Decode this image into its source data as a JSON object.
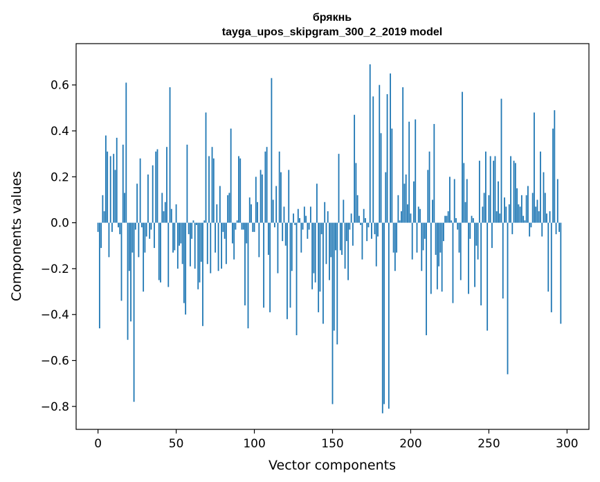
{
  "chart_data": {
    "type": "bar",
    "title": "брякнь",
    "subtitle": "tayga_upos_skipgram_300_2_2019 model",
    "xlabel": "Vector components",
    "ylabel": "Components values",
    "xlim": [
      -14,
      314
    ],
    "ylim": [
      -0.9,
      0.78
    ],
    "xticks": [
      0,
      50,
      100,
      150,
      200,
      250,
      300
    ],
    "yticks": [
      -0.8,
      -0.6,
      -0.4,
      -0.2,
      0.0,
      0.2,
      0.4,
      0.6
    ],
    "ytick_labels": [
      "−0.8",
      "−0.6",
      "−0.4",
      "−0.2",
      "0.0",
      "0.2",
      "0.4",
      "0.6"
    ],
    "bar_color": "#1f77b4",
    "grid": false,
    "values": [
      -0.04,
      -0.46,
      -0.11,
      0.12,
      0.05,
      0.38,
      0.31,
      -0.15,
      0.29,
      -0.04,
      0.3,
      0.23,
      0.37,
      -0.02,
      -0.05,
      -0.34,
      0.34,
      0.13,
      0.61,
      -0.51,
      -0.21,
      -0.43,
      -0.13,
      -0.78,
      -0.03,
      0.17,
      -0.15,
      0.28,
      -0.02,
      -0.3,
      -0.13,
      -0.06,
      0.21,
      -0.07,
      -0.03,
      0.25,
      -0.11,
      0.31,
      0.32,
      -0.25,
      -0.26,
      0.13,
      0.05,
      0.09,
      0.33,
      -0.28,
      0.59,
      0.06,
      -0.13,
      -0.12,
      0.08,
      -0.2,
      -0.1,
      -0.09,
      -0.18,
      -0.35,
      -0.4,
      0.34,
      -0.05,
      -0.19,
      -0.07,
      0.01,
      -0.2,
      -0.01,
      -0.29,
      -0.26,
      -0.17,
      -0.45,
      0.01,
      0.48,
      -0.18,
      0.29,
      -0.22,
      0.33,
      0.28,
      -0.13,
      0.08,
      -0.21,
      0.16,
      -0.2,
      -0.04,
      -0.07,
      -0.18,
      0.12,
      0.13,
      0.41,
      -0.09,
      -0.16,
      -0.03,
      0.01,
      0.29,
      0.28,
      -0.03,
      -0.03,
      -0.36,
      -0.09,
      -0.46,
      0.11,
      0.08,
      -0.04,
      -0.04,
      0.2,
      0.09,
      -0.15,
      0.23,
      0.21,
      -0.37,
      0.31,
      0.33,
      -0.14,
      -0.39,
      0.63,
      0.1,
      -0.02,
      0.16,
      -0.22,
      0.31,
      0.22,
      -0.08,
      0.07,
      -0.1,
      -0.42,
      0.23,
      -0.37,
      -0.21,
      0.04,
      -0.01,
      -0.49,
      0.06,
      0.02,
      -0.13,
      -0.03,
      0.07,
      0.03,
      -0.07,
      -0.03,
      0.07,
      -0.29,
      -0.22,
      -0.26,
      0.17,
      -0.39,
      -0.3,
      -0.05,
      -0.44,
      0.09,
      -0.18,
      0.05,
      -0.25,
      -0.15,
      -0.79,
      -0.47,
      -0.12,
      -0.53,
      0.3,
      -0.12,
      -0.14,
      0.1,
      -0.2,
      -0.08,
      -0.25,
      -0.03,
      0.04,
      -0.1,
      0.47,
      0.26,
      0.12,
      0.03,
      -0.01,
      -0.16,
      0.06,
      0.02,
      -0.08,
      -0.02,
      0.69,
      -0.07,
      0.55,
      -0.05,
      -0.19,
      -0.06,
      0.6,
      0.39,
      -0.83,
      -0.79,
      0.22,
      0.56,
      -0.81,
      0.65,
      0.41,
      -0.13,
      -0.21,
      -0.13,
      0.12,
      0.01,
      0.05,
      0.59,
      0.17,
      0.21,
      0.08,
      0.44,
      0.04,
      -0.16,
      0.18,
      0.45,
      -0.13,
      0.07,
      0.06,
      -0.21,
      -0.12,
      -0.07,
      -0.49,
      0.23,
      0.31,
      -0.31,
      0.1,
      0.43,
      -0.14,
      -0.29,
      -0.19,
      -0.13,
      -0.3,
      -0.08,
      0.03,
      0.03,
      0.05,
      0.2,
      0.01,
      -0.35,
      0.19,
      0.02,
      -0.03,
      -0.13,
      -0.25,
      0.57,
      0.26,
      0.09,
      0.19,
      -0.31,
      -0.07,
      0.03,
      0.02,
      -0.28,
      -0.1,
      -0.16,
      0.27,
      -0.36,
      0.07,
      0.13,
      0.31,
      -0.47,
      0.12,
      0.29,
      -0.11,
      0.27,
      0.29,
      0.05,
      0.18,
      0.04,
      0.54,
      -0.33,
      0.11,
      0.07,
      -0.66,
      0.08,
      0.29,
      -0.05,
      0.27,
      0.26,
      0.15,
      0.08,
      0.07,
      0.12,
      0.03,
      0.01,
      0.12,
      0.16,
      -0.06,
      -0.02,
      0.13,
      0.48,
      0.07,
      0.1,
      0.05,
      0.31,
      -0.06,
      0.22,
      0.13,
      0.04,
      -0.3,
      0.05,
      -0.39,
      0.41,
      0.49,
      -0.05,
      0.19,
      -0.04,
      -0.44
    ]
  }
}
